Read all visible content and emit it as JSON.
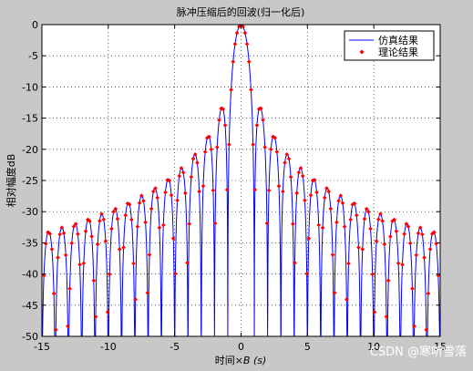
{
  "chart_data": {
    "type": "line",
    "title": "脉冲压缩后的回波(归一化后)",
    "xlabel_prefix": "时间×",
    "xlabel_var": "B",
    "xlabel_suffix": " (s)",
    "ylabel": "相对幅度dB",
    "xlim": [
      -15,
      15
    ],
    "ylim": [
      -50,
      0
    ],
    "xticks": [
      -15,
      -10,
      -5,
      0,
      5,
      10,
      15
    ],
    "yticks": [
      0,
      -5,
      -10,
      -15,
      -20,
      -25,
      -30,
      -35,
      -40,
      -45,
      -50
    ],
    "grid": true,
    "grid_style": "dotted",
    "legend_position": "top-right",
    "series": [
      {
        "name": "仿真结果",
        "style": "line",
        "color": "#0000ff",
        "function": "sinc in dB, sampled with 10 points per unit, floored at -50",
        "sidelobe_peaks": [
          {
            "x": 1.43,
            "y": -13.3
          },
          {
            "x": 2.46,
            "y": -17.8
          },
          {
            "x": 3.47,
            "y": -20.8
          },
          {
            "x": 4.48,
            "y": -23.0
          },
          {
            "x": 5.48,
            "y": -24.7
          },
          {
            "x": 6.49,
            "y": -26.2
          },
          {
            "x": 7.49,
            "y": -27.4
          },
          {
            "x": 8.49,
            "y": -28.5
          },
          {
            "x": 9.49,
            "y": -29.5
          },
          {
            "x": 10.49,
            "y": -30.3
          },
          {
            "x": 11.49,
            "y": -31.1
          },
          {
            "x": 12.49,
            "y": -31.8
          },
          {
            "x": 13.49,
            "y": -32.5
          },
          {
            "x": 14.49,
            "y": -33.1
          }
        ]
      },
      {
        "name": "理论结果",
        "style": "markers",
        "color": "#ff0000",
        "function": "sinc in dB, sampled with 20/3 points per unit"
      }
    ]
  },
  "watermark": "CSDN @寒听雪落"
}
